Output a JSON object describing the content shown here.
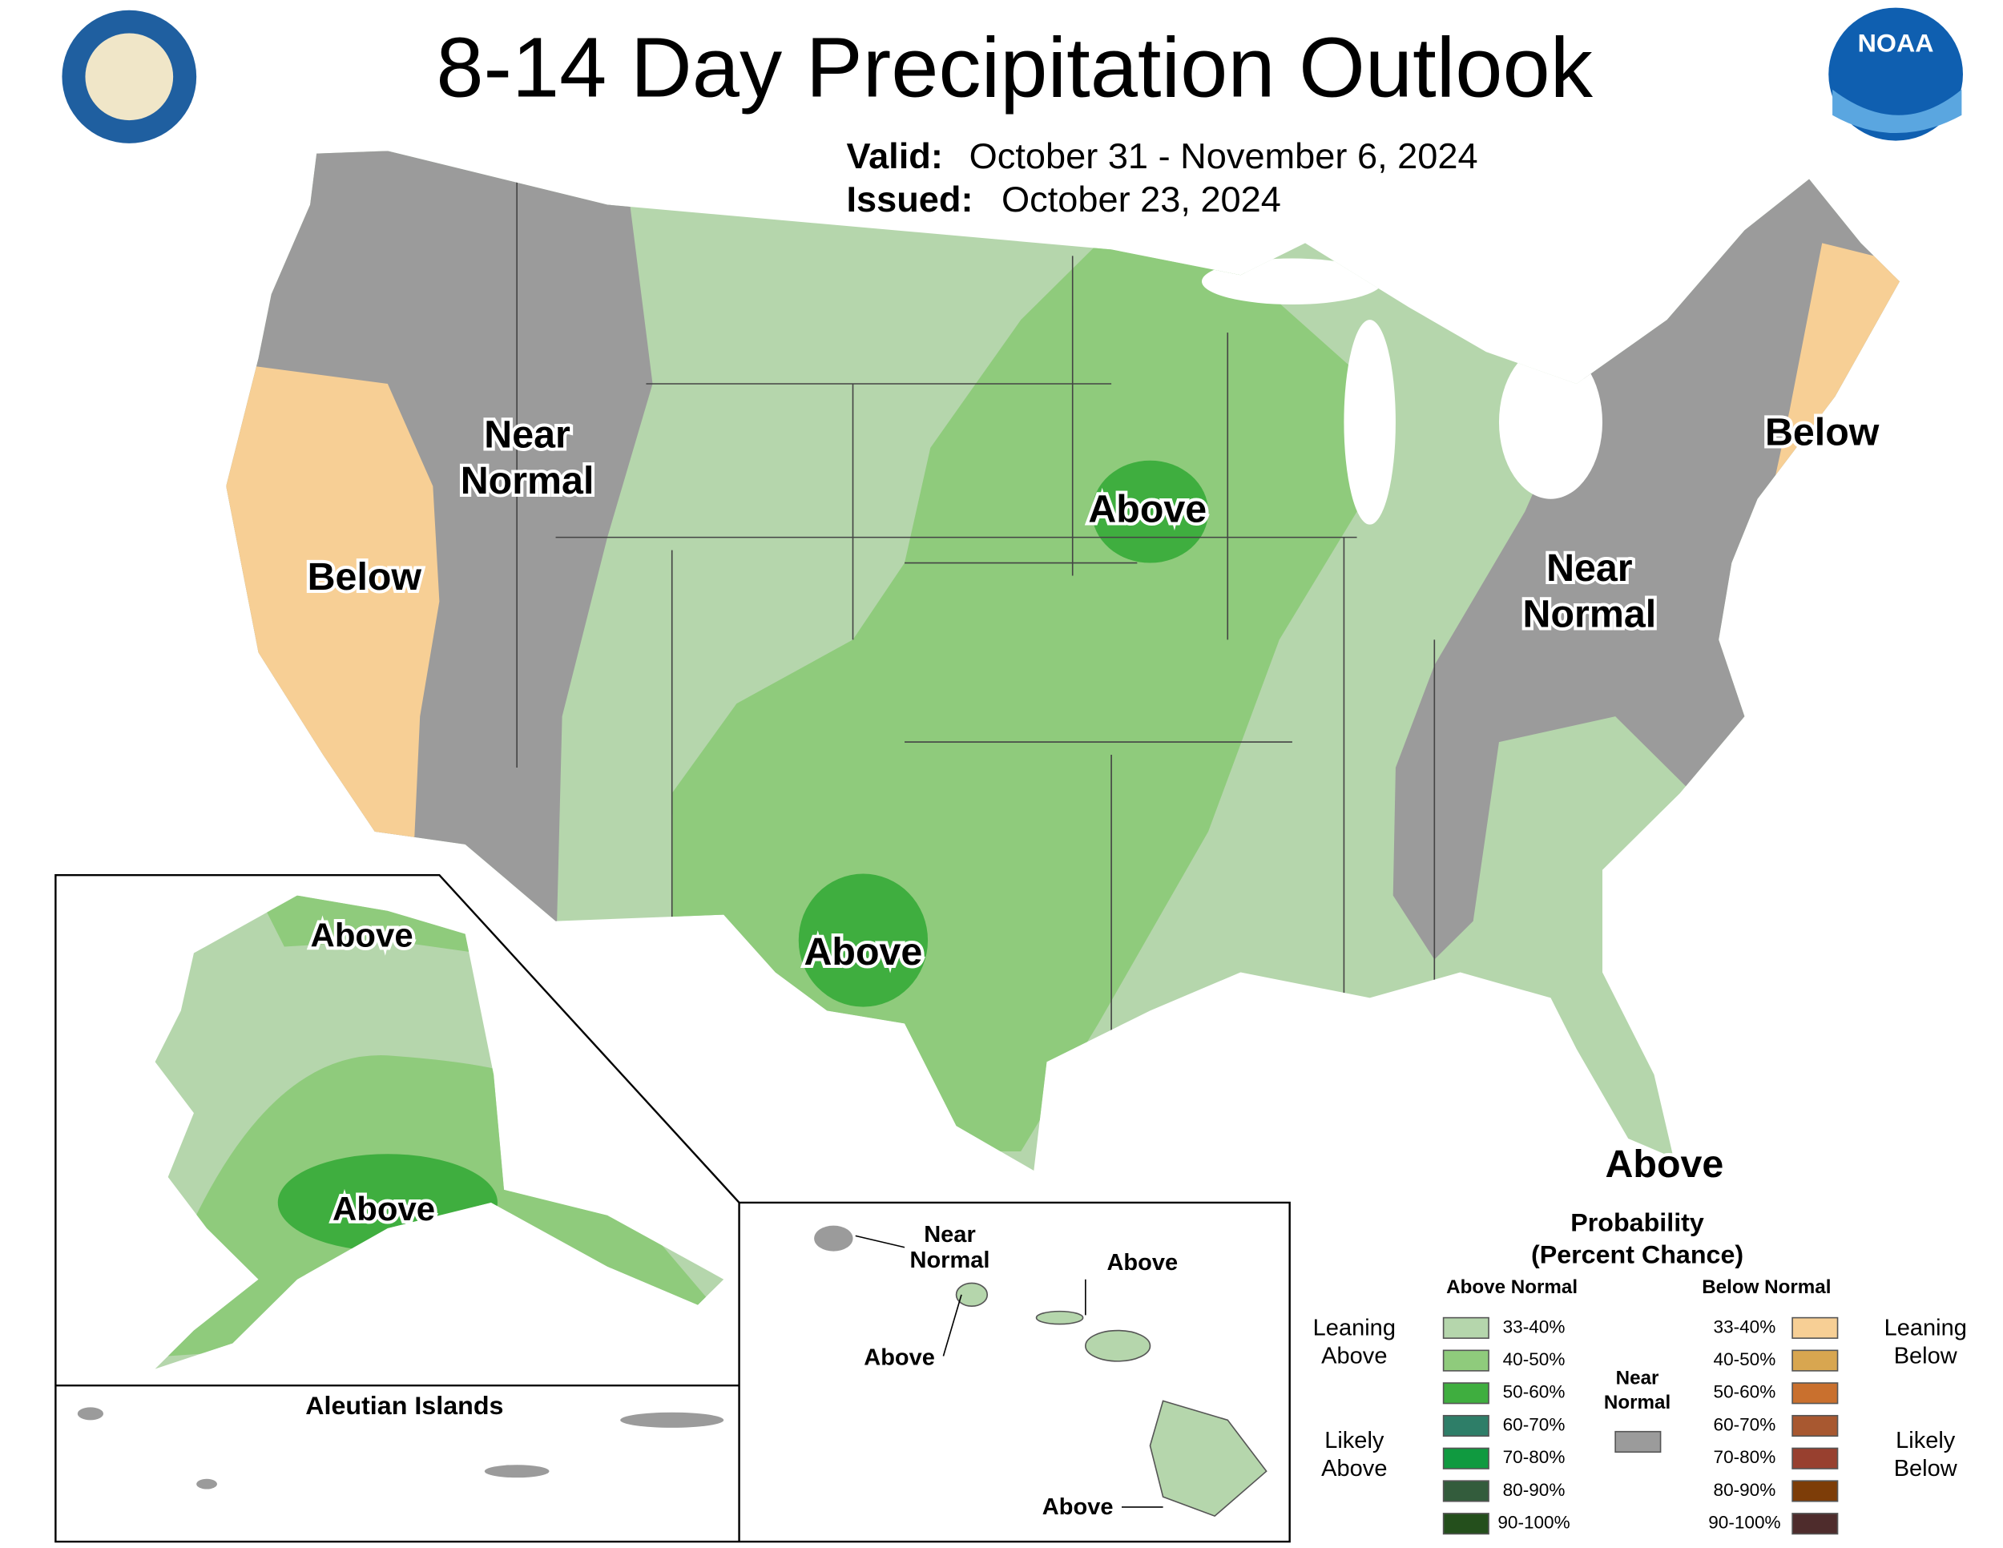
{
  "header": {
    "title": "8-14 Day Precipitation Outlook",
    "valid_label": "Valid:",
    "valid": "October 31 - November 6, 2024",
    "issued_label": "Issued:",
    "issued": "October 23, 2024",
    "noaa": "NOAA"
  },
  "map_labels": [
    [
      "Near",
      "Normal"
    ],
    [
      "Below"
    ],
    [
      "Above"
    ],
    [
      "Above"
    ],
    [
      "Near",
      "Normal"
    ],
    [
      "Below"
    ],
    [
      "Above"
    ]
  ],
  "alaska_labels": [
    [
      "Above"
    ],
    [
      "Above"
    ]
  ],
  "aleutian_title": "Aleutian Islands",
  "hawaii_labels": [
    [
      "Near",
      "Normal"
    ],
    [
      "Above"
    ],
    [
      "Above"
    ],
    [
      "Above"
    ]
  ],
  "legend": {
    "title": "Probability",
    "subtitle": "(Percent Chance)",
    "above_header": "Above Normal",
    "below_header": "Below Normal",
    "near_normal": [
      "Near",
      "Normal"
    ],
    "near_color": "#9b9b9b",
    "leaning_above": [
      "Leaning",
      "Above"
    ],
    "likely_above": [
      "Likely",
      "Above"
    ],
    "leaning_below": [
      "Leaning",
      "Below"
    ],
    "likely_below": [
      "Likely",
      "Below"
    ],
    "above": [
      {
        "label": "33-40%",
        "color": "#b5d6ac"
      },
      {
        "label": "40-50%",
        "color": "#8fcb7c"
      },
      {
        "label": "50-60%",
        "color": "#3fae3f"
      },
      {
        "label": "60-70%",
        "color": "#2e7e68"
      },
      {
        "label": "70-80%",
        "color": "#109a40"
      },
      {
        "label": "80-90%",
        "color": "#335c3c"
      },
      {
        "label": "90-100%",
        "color": "#244f1c"
      }
    ],
    "below": [
      {
        "label": "33-40%",
        "color": "#f7cf95"
      },
      {
        "label": "40-50%",
        "color": "#d8a650"
      },
      {
        "label": "50-60%",
        "color": "#c9702e"
      },
      {
        "label": "60-70%",
        "color": "#a85830"
      },
      {
        "label": "70-80%",
        "color": "#98402f"
      },
      {
        "label": "80-90%",
        "color": "#7d3d08"
      },
      {
        "label": "90-100%",
        "color": "#4e2c2c"
      }
    ]
  }
}
